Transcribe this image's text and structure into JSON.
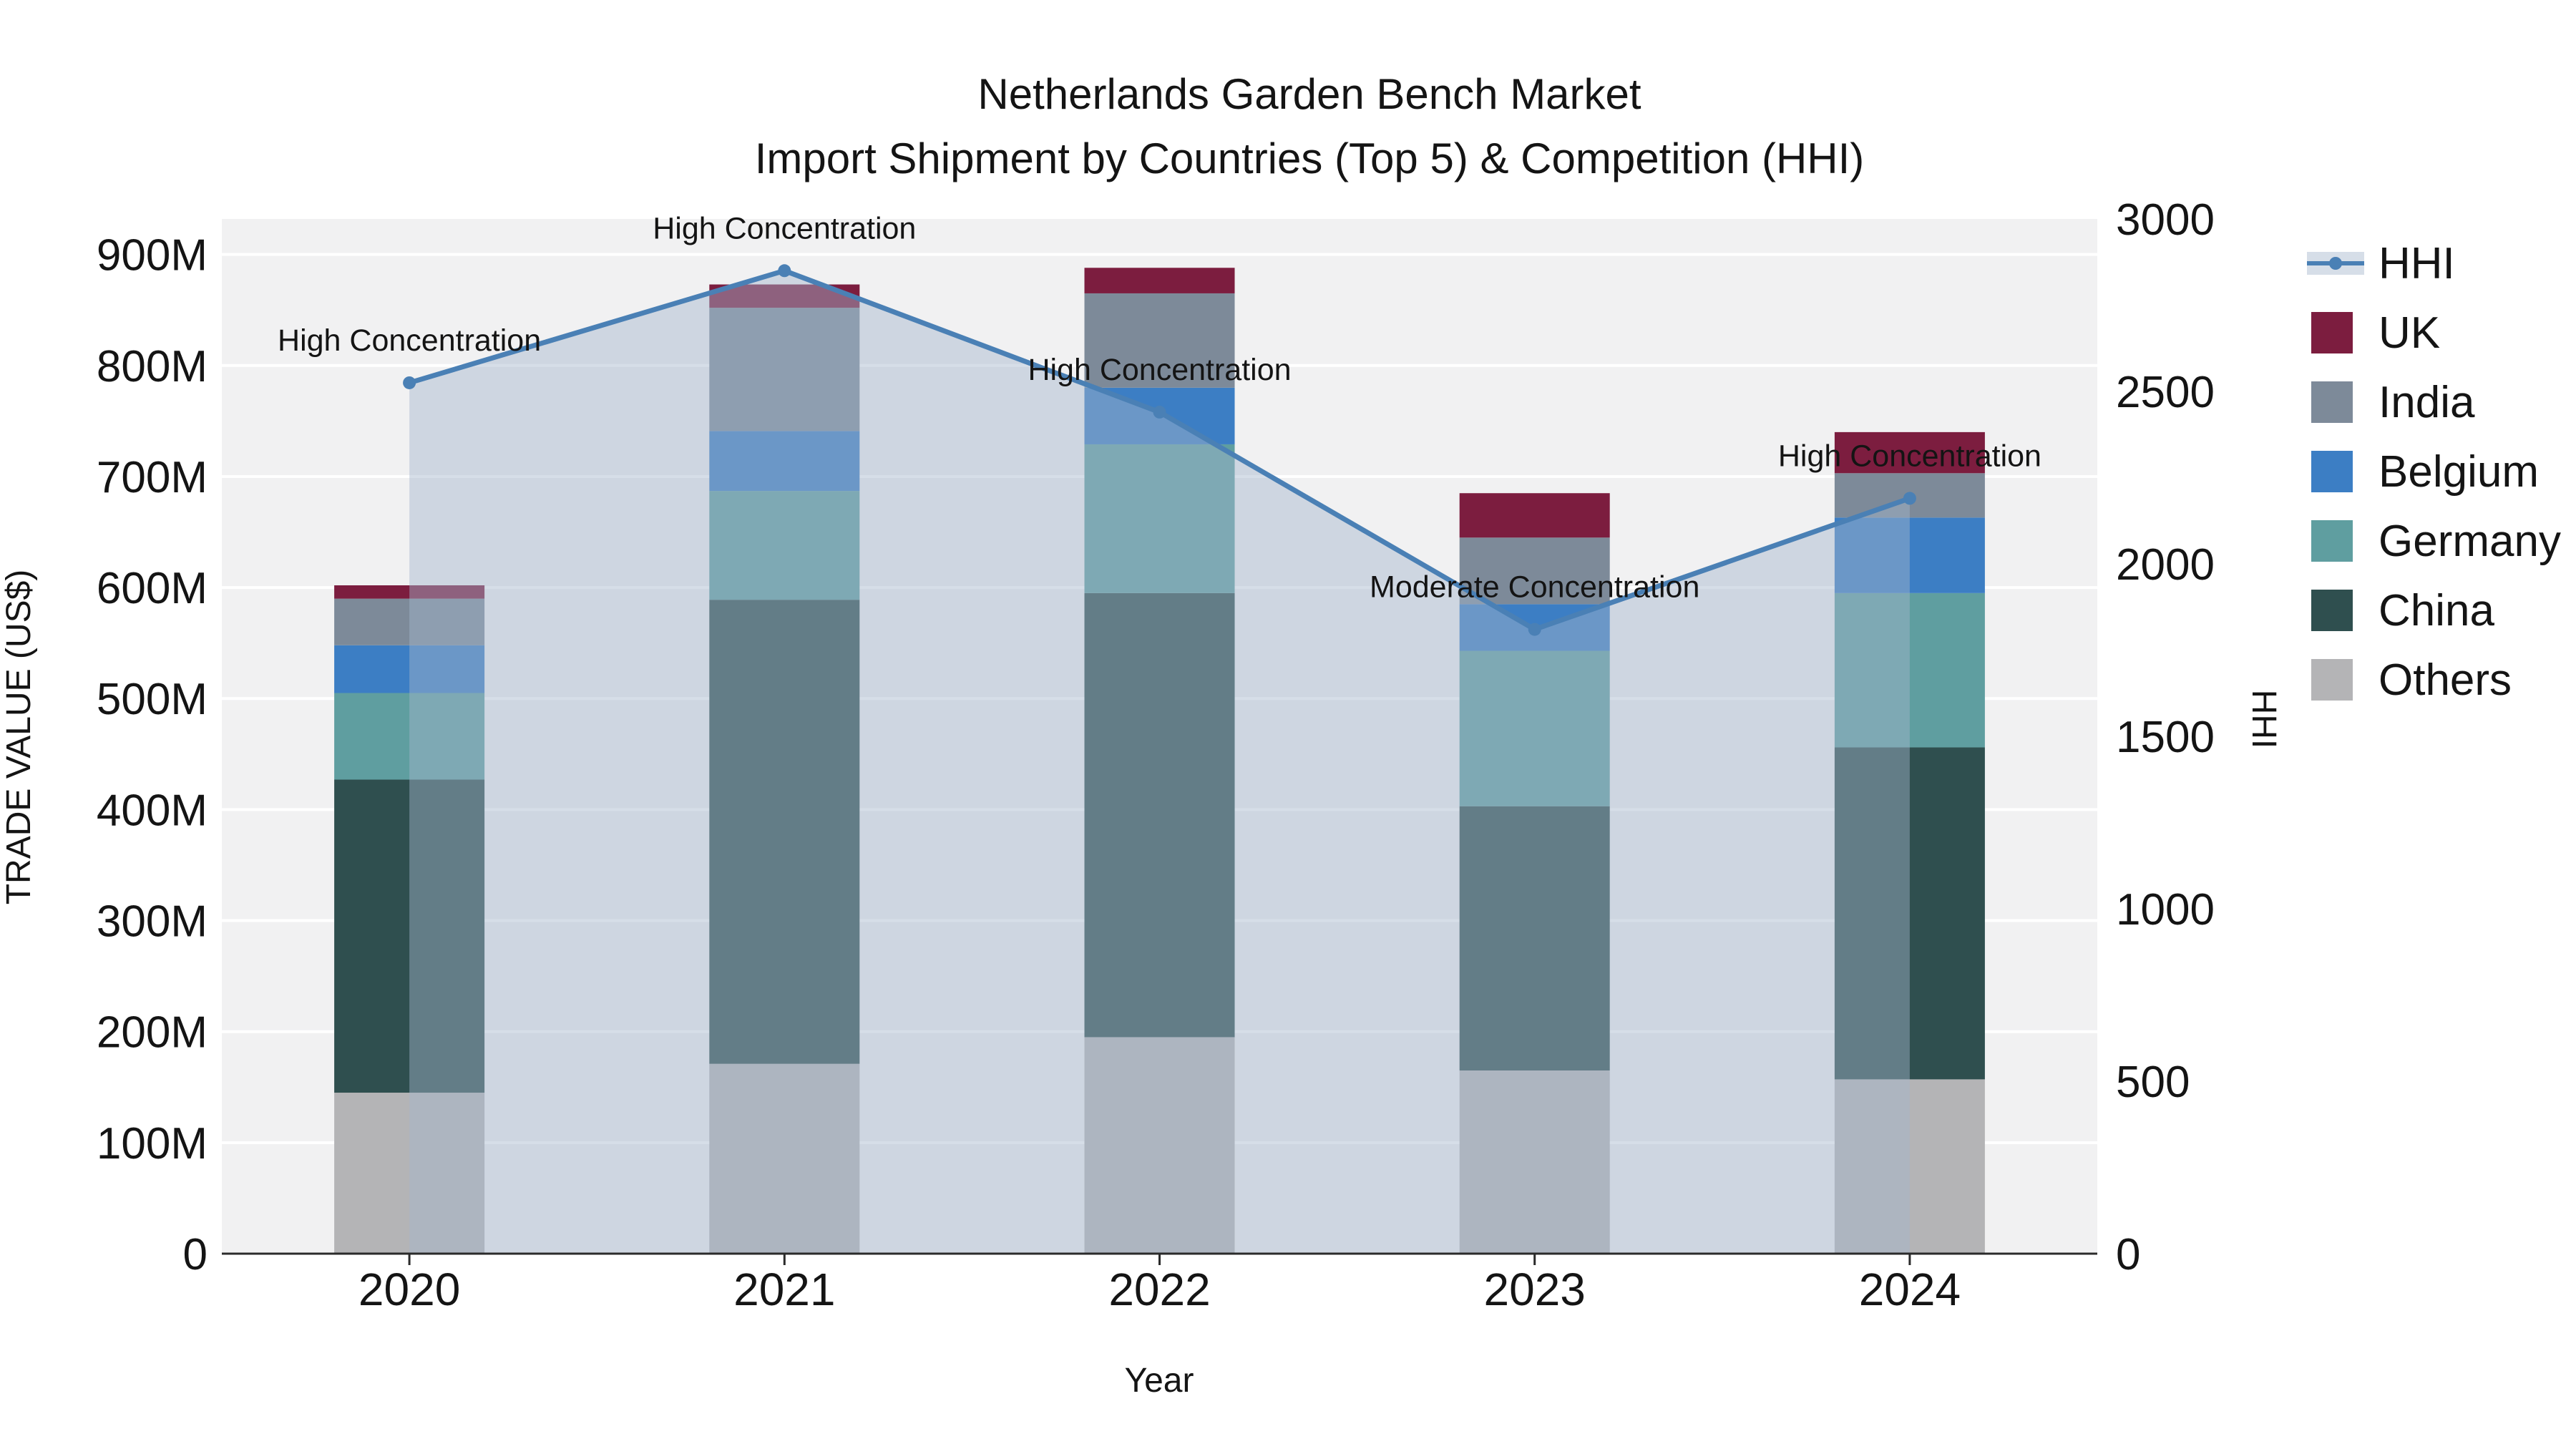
{
  "chart_data": {
    "type": "combo-stacked-bar-line",
    "title": "Netherlands Garden Bench Market",
    "subtitle": "Import Shipment by Countries (Top 5) & Competition (HHI)",
    "xlabel": "Year",
    "ylabel_left": "TRADE VALUE (US$)",
    "ylabel_right": "HHI",
    "categories": [
      "2020",
      "2021",
      "2022",
      "2023",
      "2024"
    ],
    "bar_value_unit": "millions US$",
    "series": [
      {
        "name": "Others",
        "color": "#b4b4b6",
        "values": [
          145,
          171,
          195,
          165,
          157
        ]
      },
      {
        "name": "China",
        "color": "#2f4f4f",
        "values": [
          282,
          418,
          400,
          238,
          299
        ]
      },
      {
        "name": "Germany",
        "color": "#5f9ea0",
        "values": [
          78,
          98,
          134,
          140,
          139
        ]
      },
      {
        "name": "Belgium",
        "color": "#3c7ec4",
        "values": [
          43,
          54,
          51,
          42,
          68
        ]
      },
      {
        "name": "India",
        "color": "#7d8a99",
        "values": [
          42,
          111,
          85,
          60,
          40
        ]
      },
      {
        "name": "UK",
        "color": "#7c1d3f",
        "values": [
          12,
          21,
          23,
          40,
          37
        ]
      }
    ],
    "hhi": {
      "name": "HHI",
      "color": "#4a80b5",
      "area_color": "rgba(164,182,205,0.45)",
      "values": [
        2525,
        2850,
        2440,
        1810,
        2190
      ]
    },
    "annotations": [
      "High Concentration",
      "High Concentration",
      "High Concentration",
      "Moderate Concentration",
      "High Concentration"
    ],
    "y_left": {
      "ticks": [
        "0",
        "100M",
        "200M",
        "300M",
        "400M",
        "500M",
        "600M",
        "700M",
        "800M",
        "900M"
      ],
      "tick_step_m": 100,
      "max_m": 932
    },
    "y_right": {
      "ticks": [
        0,
        500,
        1000,
        1500,
        2000,
        2500,
        3000
      ],
      "max": 3000
    },
    "legend": [
      "HHI",
      "UK",
      "India",
      "Belgium",
      "Germany",
      "China",
      "Others"
    ],
    "plot_bg": "#f1f1f2",
    "grid_color": "#ffffff",
    "axis_line_color": "#2a2a2a"
  }
}
